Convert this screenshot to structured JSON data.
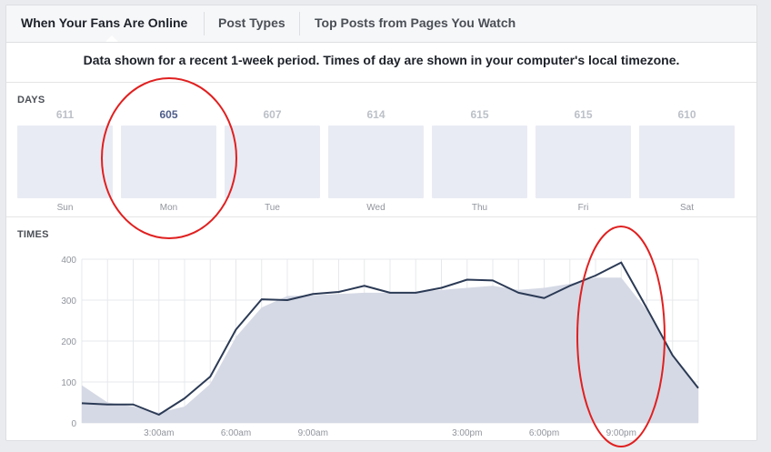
{
  "tabs": [
    {
      "label": "When Your Fans Are Online",
      "active": true
    },
    {
      "label": "Post Types",
      "active": false
    },
    {
      "label": "Top Posts from Pages You Watch",
      "active": false
    }
  ],
  "subtitle": "Data shown for a recent 1-week period. Times of day are shown in your computer's local timezone.",
  "days_section": {
    "label": "DAYS",
    "selected": "Mon",
    "days": [
      {
        "name": "Sun",
        "count": "611"
      },
      {
        "name": "Mon",
        "count": "605"
      },
      {
        "name": "Tue",
        "count": "607"
      },
      {
        "name": "Wed",
        "count": "614"
      },
      {
        "name": "Thu",
        "count": "615"
      },
      {
        "name": "Fri",
        "count": "615"
      },
      {
        "name": "Sat",
        "count": "610"
      }
    ]
  },
  "times_section": {
    "label": "TIMES"
  },
  "colors": {
    "line": "#2b3a55",
    "area": "#d5d9e5",
    "annotation": "#e02020"
  },
  "chart_data": {
    "type": "line",
    "ylim": [
      0,
      400
    ],
    "yticks": [
      "0",
      "100",
      "200",
      "300",
      "400"
    ],
    "xlim": [
      0,
      24
    ],
    "xticks": [
      {
        "x": 3,
        "label": "3:00am"
      },
      {
        "x": 6,
        "label": "6:00am"
      },
      {
        "x": 9,
        "label": "9:00am"
      },
      {
        "x": 15,
        "label": "3:00pm"
      },
      {
        "x": 18,
        "label": "6:00pm"
      },
      {
        "x": 21,
        "label": "9:00pm"
      }
    ],
    "series": [
      {
        "kind": "line",
        "x": [
          0,
          1,
          2,
          3,
          4,
          5,
          6,
          7,
          8,
          9,
          10,
          11,
          12,
          13,
          14,
          15,
          16,
          17,
          18,
          19,
          20,
          21,
          22,
          23,
          24
        ],
        "values": [
          48,
          45,
          45,
          20,
          60,
          113,
          228,
          302,
          300,
          315,
          320,
          335,
          318,
          318,
          330,
          350,
          348,
          318,
          305,
          335,
          360,
          392,
          280,
          165,
          85
        ]
      },
      {
        "kind": "area",
        "x": [
          0,
          1,
          2,
          3,
          4,
          5,
          6,
          7,
          8,
          9,
          10,
          11,
          12,
          13,
          14,
          15,
          16,
          17,
          18,
          19,
          20,
          21,
          22,
          23,
          24
        ],
        "values": [
          92,
          50,
          40,
          25,
          40,
          95,
          210,
          282,
          310,
          312,
          315,
          318,
          318,
          320,
          325,
          330,
          335,
          325,
          330,
          340,
          355,
          355,
          275,
          160,
          85
        ]
      }
    ]
  }
}
